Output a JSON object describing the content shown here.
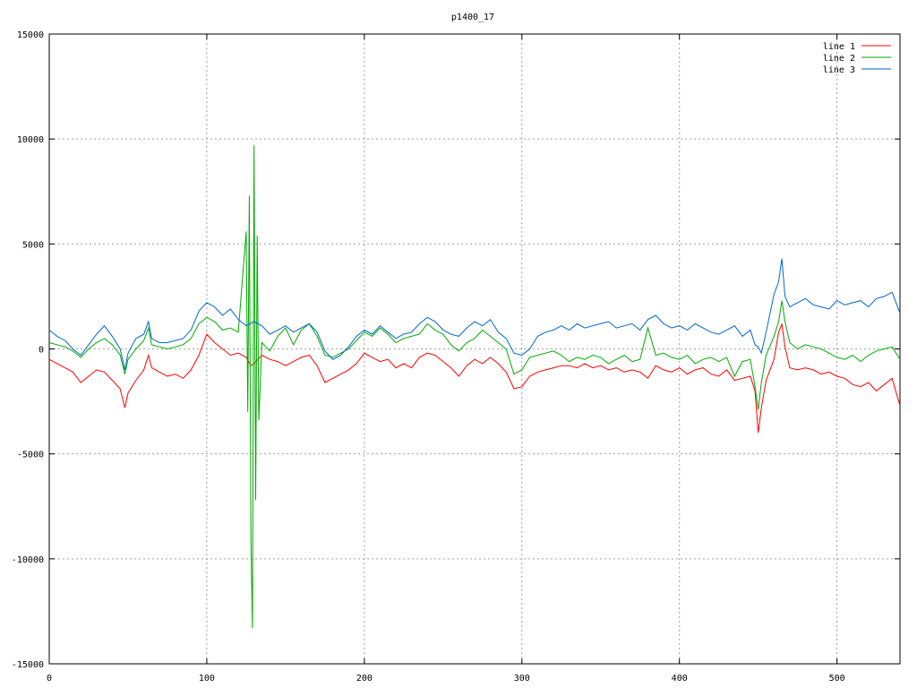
{
  "chart_data": {
    "type": "line",
    "title": "p1400_17",
    "xlabel": "",
    "ylabel": "",
    "xlim": [
      0,
      540
    ],
    "ylim": [
      -15000,
      15000
    ],
    "xticks": [
      0,
      100,
      200,
      300,
      400,
      500
    ],
    "yticks": [
      -15000,
      -10000,
      -5000,
      0,
      5000,
      10000,
      15000
    ],
    "grid": true,
    "legend_position": "top-right",
    "series": [
      {
        "name": "line 1",
        "color": "#ff0000",
        "x": [
          0,
          5,
          10,
          15,
          20,
          25,
          30,
          35,
          40,
          45,
          48,
          50,
          55,
          60,
          63,
          65,
          70,
          75,
          80,
          85,
          90,
          95,
          100,
          105,
          110,
          115,
          120,
          125,
          128,
          130,
          135,
          140,
          145,
          150,
          155,
          160,
          165,
          170,
          175,
          180,
          185,
          190,
          195,
          200,
          205,
          210,
          215,
          220,
          225,
          230,
          235,
          240,
          245,
          250,
          255,
          260,
          265,
          270,
          275,
          280,
          285,
          290,
          295,
          300,
          305,
          310,
          315,
          320,
          325,
          330,
          335,
          340,
          345,
          350,
          355,
          360,
          365,
          370,
          375,
          380,
          385,
          390,
          395,
          400,
          405,
          410,
          415,
          420,
          425,
          430,
          435,
          440,
          445,
          448,
          450,
          452,
          455,
          460,
          463,
          465,
          467,
          470,
          475,
          480,
          485,
          490,
          495,
          500,
          505,
          510,
          515,
          520,
          525,
          530,
          535,
          540
        ],
        "values": [
          -500,
          -700,
          -900,
          -1100,
          -1600,
          -1300,
          -1000,
          -1100,
          -1500,
          -1900,
          -2800,
          -2100,
          -1500,
          -1000,
          -300,
          -900,
          -1100,
          -1300,
          -1200,
          -1400,
          -1000,
          -300,
          700,
          300,
          0,
          -300,
          -200,
          -400,
          -800,
          -700,
          -300,
          -500,
          -600,
          -800,
          -600,
          -400,
          -300,
          -800,
          -1600,
          -1400,
          -1200,
          -1000,
          -700,
          -200,
          -400,
          -600,
          -500,
          -900,
          -700,
          -900,
          -400,
          -200,
          -300,
          -600,
          -900,
          -1300,
          -800,
          -500,
          -700,
          -400,
          -700,
          -1100,
          -1900,
          -1800,
          -1300,
          -1100,
          -1000,
          -900,
          -800,
          -800,
          -900,
          -700,
          -900,
          -800,
          -1000,
          -900,
          -1100,
          -1000,
          -1100,
          -1400,
          -800,
          -1000,
          -1100,
          -900,
          -1200,
          -1000,
          -900,
          -1200,
          -1300,
          -1000,
          -1500,
          -1400,
          -1300,
          -2000,
          -4000,
          -2800,
          -1500,
          -500,
          800,
          1200,
          100,
          -900,
          -1000,
          -900,
          -1000,
          -1200,
          -1100,
          -1300,
          -1400,
          -1700,
          -1800,
          -1600,
          -2000,
          -1700,
          -1400,
          -2700
        ]
      },
      {
        "name": "line 2",
        "color": "#00aa00",
        "x": [
          0,
          5,
          10,
          15,
          20,
          25,
          30,
          35,
          40,
          45,
          48,
          50,
          55,
          60,
          63,
          65,
          70,
          75,
          80,
          85,
          90,
          95,
          100,
          105,
          110,
          115,
          120,
          125,
          126,
          127,
          128,
          129,
          130,
          131,
          132,
          133,
          135,
          140,
          145,
          150,
          155,
          160,
          165,
          170,
          175,
          180,
          185,
          190,
          195,
          200,
          205,
          210,
          215,
          220,
          225,
          230,
          235,
          240,
          245,
          250,
          255,
          260,
          265,
          270,
          275,
          280,
          285,
          290,
          295,
          300,
          305,
          310,
          315,
          320,
          325,
          330,
          335,
          340,
          345,
          350,
          355,
          360,
          365,
          370,
          375,
          380,
          385,
          390,
          395,
          400,
          405,
          410,
          415,
          420,
          425,
          430,
          435,
          440,
          445,
          448,
          450,
          452,
          455,
          460,
          463,
          465,
          467,
          470,
          475,
          480,
          485,
          490,
          495,
          500,
          505,
          510,
          515,
          520,
          525,
          530,
          535,
          540
        ],
        "values": [
          300,
          200,
          100,
          -100,
          -400,
          0,
          300,
          500,
          200,
          -300,
          -1200,
          -500,
          0,
          400,
          1000,
          200,
          100,
          0,
          100,
          200,
          500,
          1200,
          1500,
          1300,
          900,
          1000,
          800,
          5600,
          -3000,
          7300,
          -9100,
          -13300,
          9700,
          -7200,
          5400,
          -3400,
          300,
          -100,
          600,
          1000,
          200,
          900,
          1200,
          600,
          -300,
          -400,
          -200,
          0,
          400,
          800,
          600,
          1000,
          700,
          300,
          500,
          600,
          700,
          1200,
          900,
          700,
          200,
          -100,
          300,
          500,
          900,
          600,
          300,
          0,
          -1200,
          -1000,
          -400,
          -300,
          -200,
          -100,
          -300,
          -600,
          -400,
          -500,
          -300,
          -400,
          -700,
          -500,
          -300,
          -600,
          -500,
          1000,
          -300,
          -200,
          -400,
          -500,
          -300,
          -700,
          -500,
          -400,
          -600,
          -400,
          -1300,
          -600,
          -500,
          -1800,
          -2900,
          -1600,
          -300,
          600,
          1300,
          2300,
          1300,
          300,
          0,
          200,
          100,
          0,
          -200,
          -400,
          -500,
          -300,
          -600,
          -300,
          -100,
          0,
          100,
          -500
        ],
        "spike_note": ""
      },
      {
        "name": "line 3",
        "color": "#0066cc",
        "x": [
          0,
          5,
          10,
          15,
          20,
          25,
          30,
          35,
          40,
          45,
          48,
          50,
          55,
          60,
          63,
          65,
          70,
          75,
          80,
          85,
          90,
          95,
          100,
          105,
          110,
          115,
          120,
          125,
          130,
          135,
          140,
          145,
          150,
          155,
          160,
          165,
          170,
          175,
          180,
          185,
          190,
          195,
          200,
          205,
          210,
          215,
          220,
          225,
          230,
          235,
          240,
          245,
          250,
          255,
          260,
          265,
          270,
          275,
          280,
          285,
          290,
          295,
          300,
          305,
          310,
          315,
          320,
          325,
          330,
          335,
          340,
          345,
          350,
          355,
          360,
          365,
          370,
          375,
          380,
          385,
          390,
          395,
          400,
          405,
          410,
          415,
          420,
          425,
          430,
          435,
          440,
          445,
          448,
          450,
          452,
          455,
          460,
          463,
          465,
          467,
          470,
          475,
          480,
          485,
          490,
          495,
          500,
          505,
          510,
          515,
          520,
          525,
          530,
          535,
          540
        ],
        "values": [
          900,
          600,
          400,
          0,
          -300,
          200,
          700,
          1100,
          600,
          0,
          -1000,
          -200,
          500,
          700,
          1300,
          500,
          300,
          300,
          400,
          500,
          900,
          1800,
          2200,
          2000,
          1600,
          1900,
          1400,
          1100,
          1300,
          1100,
          700,
          900,
          1100,
          800,
          1000,
          1200,
          800,
          -100,
          -500,
          -300,
          100,
          600,
          900,
          700,
          1100,
          800,
          500,
          700,
          800,
          1200,
          1500,
          1300,
          900,
          700,
          600,
          1000,
          1300,
          1100,
          1400,
          800,
          500,
          -200,
          -300,
          0,
          600,
          800,
          900,
          1100,
          900,
          1200,
          1000,
          1100,
          1200,
          1300,
          1000,
          1100,
          1200,
          900,
          1400,
          1600,
          1200,
          1000,
          1100,
          900,
          1200,
          1000,
          800,
          700,
          900,
          1100,
          600,
          900,
          200,
          100,
          -200,
          800,
          2600,
          3200,
          4300,
          2500,
          2000,
          2200,
          2400,
          2100,
          2000,
          1900,
          2300,
          2100,
          2200,
          2300,
          2000,
          2400,
          2500,
          2700,
          1700
        ]
      }
    ]
  }
}
